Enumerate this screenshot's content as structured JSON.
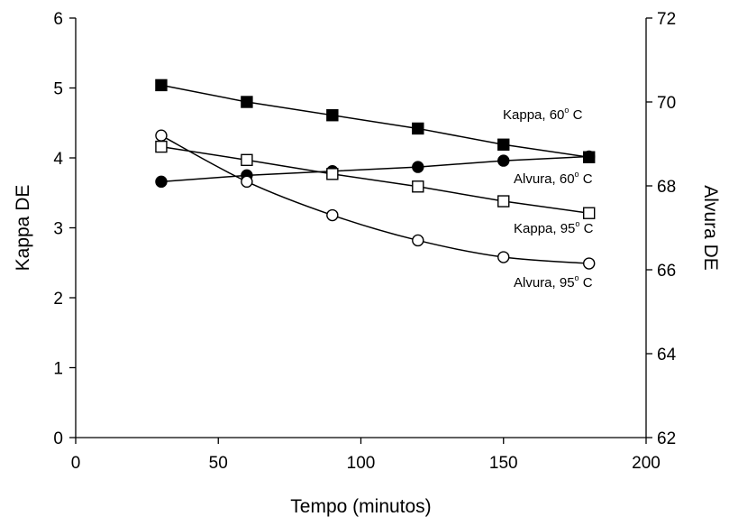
{
  "chart_data": {
    "type": "line",
    "xlabel": "Tempo (minutos)",
    "ylabel_left": "Kappa DE",
    "ylabel_right": "Alvura DE",
    "xlim": [
      0,
      200
    ],
    "x_ticks": [
      0,
      50,
      100,
      150,
      200
    ],
    "ylim_left": [
      0,
      6
    ],
    "y_ticks_left": [
      0,
      1,
      2,
      3,
      4,
      5,
      6
    ],
    "ylim_right": [
      62,
      72
    ],
    "y_ticks_right": [
      62,
      64,
      66,
      68,
      70,
      72
    ],
    "grid": false,
    "series": [
      {
        "name": "Kappa, 60",
        "unit": "C",
        "degree": "o",
        "axis": "left",
        "marker": "filled-square",
        "smooth": false,
        "x": [
          30,
          60,
          90,
          120,
          150,
          180
        ],
        "y": [
          5.04,
          4.8,
          4.61,
          4.42,
          4.19,
          4.01
        ]
      },
      {
        "name": "Alvura, 60",
        "unit": "C",
        "degree": "o",
        "axis": "right",
        "marker": "filled-circle",
        "smooth": false,
        "x": [
          30,
          60,
          90,
          120,
          150,
          180
        ],
        "y": [
          68.1,
          68.25,
          68.35,
          68.45,
          68.6,
          68.7
        ]
      },
      {
        "name": "Kappa, 95",
        "unit": "C",
        "degree": "o",
        "axis": "left",
        "marker": "open-square",
        "smooth": false,
        "x": [
          30,
          60,
          90,
          120,
          150,
          180
        ],
        "y": [
          4.16,
          3.97,
          3.77,
          3.59,
          3.38,
          3.21
        ]
      },
      {
        "name": "Alvura, 95",
        "unit": "C",
        "degree": "o",
        "axis": "right",
        "marker": "open-circle",
        "smooth": true,
        "x": [
          30,
          60,
          90,
          120,
          150,
          180
        ],
        "y": [
          69.2,
          68.1,
          67.3,
          66.7,
          66.3,
          66.15
        ]
      }
    ]
  }
}
